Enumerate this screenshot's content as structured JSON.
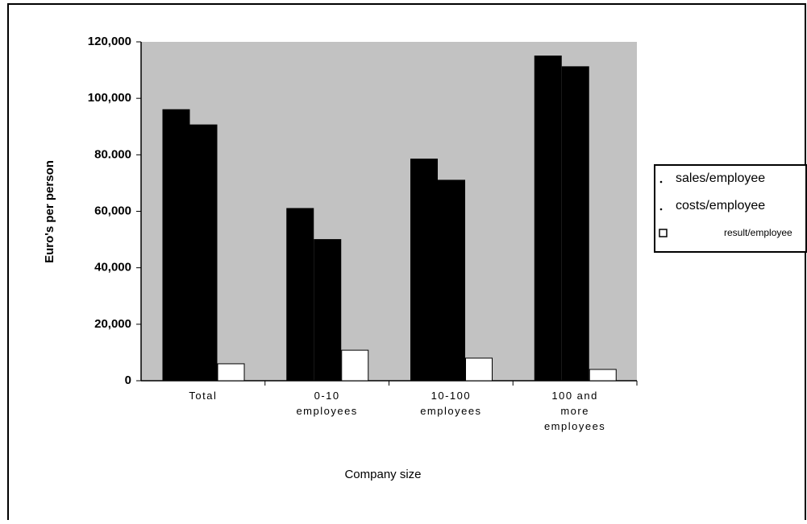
{
  "chart_data": {
    "type": "bar",
    "y_label": "Euro's per person",
    "x_label": "Company size",
    "categories": [
      "Total",
      "0-10\nemployees",
      "10-100\nemployees",
      "100 and\nmore\nemployees"
    ],
    "series": [
      {
        "name": "sales/employee",
        "color": "#000000",
        "values": [
          96000,
          61000,
          78500,
          115000
        ]
      },
      {
        "name": "costs/employee",
        "color": "#000000",
        "values": [
          90600,
          50000,
          71000,
          111200
        ]
      },
      {
        "name": "result/employee",
        "color": "#ffffff",
        "values": [
          6000,
          10800,
          8000,
          4000
        ]
      }
    ],
    "ylim": [
      0,
      120000
    ],
    "yticks": [
      0,
      {
        "value": 20000,
        "label": "20,000"
      },
      {
        "value": 40000,
        "label": "40,000"
      },
      {
        "value": 60000,
        "label": "60,000"
      },
      {
        "value": 80000,
        "label": "80.000"
      },
      {
        "value": 100000,
        "label": "100,000"
      },
      {
        "value": 120000,
        "label": "120,000"
      }
    ],
    "legend": "right"
  }
}
